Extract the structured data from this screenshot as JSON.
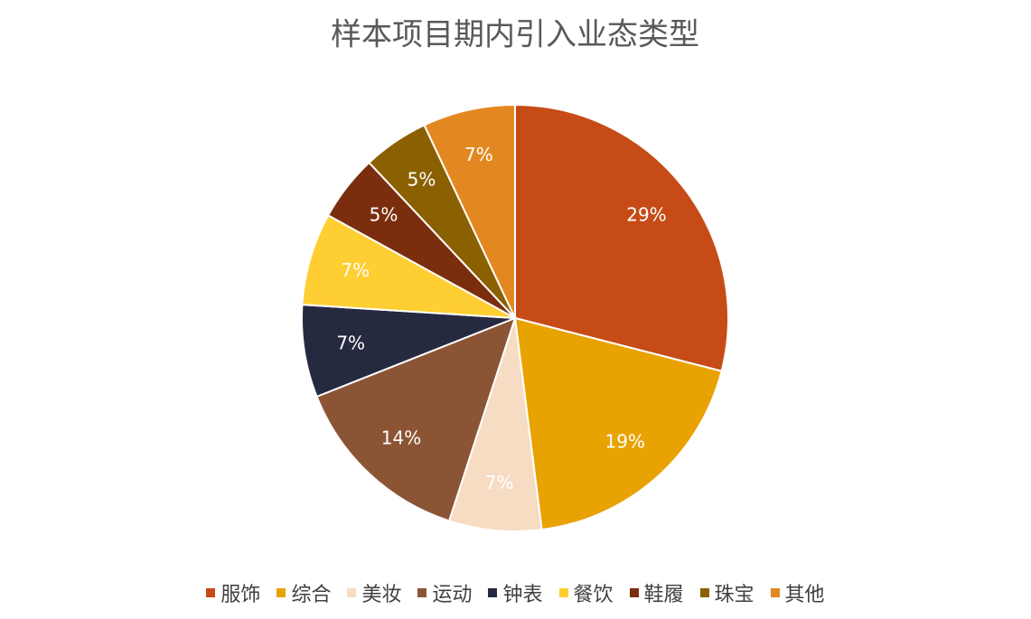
{
  "chart_data": {
    "type": "pie",
    "title": "样本项目期内引入业态类型",
    "categories": [
      "服饰",
      "综合",
      "美妆",
      "运动",
      "钟表",
      "餐饮",
      "鞋履",
      "珠宝",
      "其他"
    ],
    "values": [
      29,
      19,
      7,
      14,
      7,
      7,
      5,
      5,
      7
    ],
    "value_labels": [
      "29%",
      "19%",
      "7%",
      "14%",
      "7%",
      "7%",
      "5%",
      "5%",
      "7%"
    ],
    "colors": [
      "#C64B16",
      "#E8A202",
      "#F6DCC2",
      "#8B5535",
      "#262A40",
      "#FFCE33",
      "#7A2E0E",
      "#8A6000",
      "#E38821"
    ],
    "legend": "bottom"
  }
}
